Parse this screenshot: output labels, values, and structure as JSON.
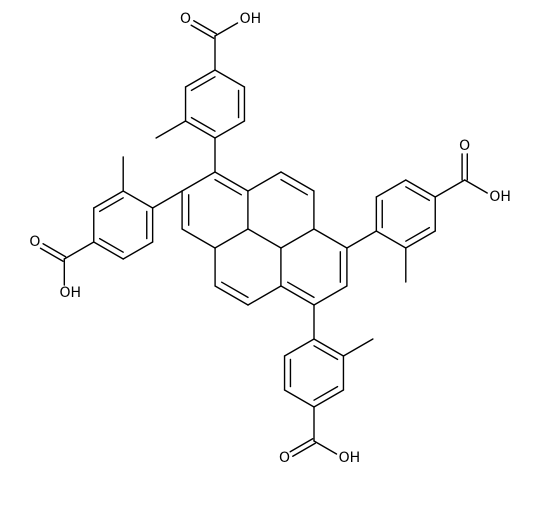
{
  "substituents": [
    {
      "carbonyl": "O",
      "hydroxyl": "OH"
    },
    {
      "carbonyl": "O",
      "hydroxyl": "OH"
    },
    {
      "carbonyl": "O",
      "hydroxyl": "OH"
    },
    {
      "carbonyl": "O",
      "hydroxyl": "OH"
    }
  ]
}
